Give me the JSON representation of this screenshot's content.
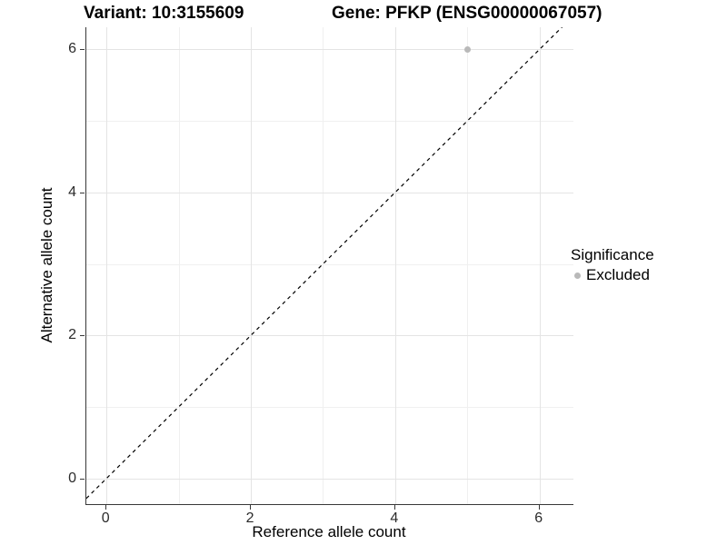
{
  "titles": {
    "variant": "Variant: 10:3155609",
    "gene": "Gene: PFKP (ENSG00000067057)"
  },
  "axes": {
    "x": {
      "label": "Reference allele count",
      "tick_labels": [
        "0",
        "2",
        "4",
        "6"
      ]
    },
    "y": {
      "label": "Alternative allele count",
      "tick_labels": [
        "0",
        "2",
        "4",
        "6"
      ]
    }
  },
  "legend": {
    "title": "Significance",
    "items": [
      {
        "label": "Excluded",
        "color": "#b9b9b9"
      }
    ]
  },
  "chart_data": {
    "type": "scatter",
    "title": "Variant: 10:3155609 / Gene: PFKP (ENSG00000067057)",
    "xlabel": "Reference allele count",
    "ylabel": "Alternative allele count",
    "xlim": [
      -0.28,
      6.47
    ],
    "ylim": [
      -0.36,
      6.31
    ],
    "x_ticks": [
      0,
      2,
      4,
      6
    ],
    "y_ticks": [
      0,
      2,
      4,
      6
    ],
    "x_minor_ticks": [
      1,
      3,
      5
    ],
    "y_minor_ticks": [
      1,
      3,
      5
    ],
    "grid": "major_and_minor",
    "legend_position": "right",
    "series": [
      {
        "name": "Excluded",
        "color": "#b9b9b9",
        "points": [
          {
            "x": 5,
            "y": 6
          }
        ]
      }
    ],
    "reference_line": {
      "slope": 1,
      "intercept": 0,
      "style": "dashed",
      "color": "#000000"
    }
  },
  "colors": {
    "background": "#ffffff",
    "grid_major": "#e4e4e4",
    "grid_minor": "#f0f0f0",
    "axis_line": "#383838",
    "tick_text": "#2b2b2b",
    "point": "#b9b9b9",
    "reference_line": "#000000"
  }
}
